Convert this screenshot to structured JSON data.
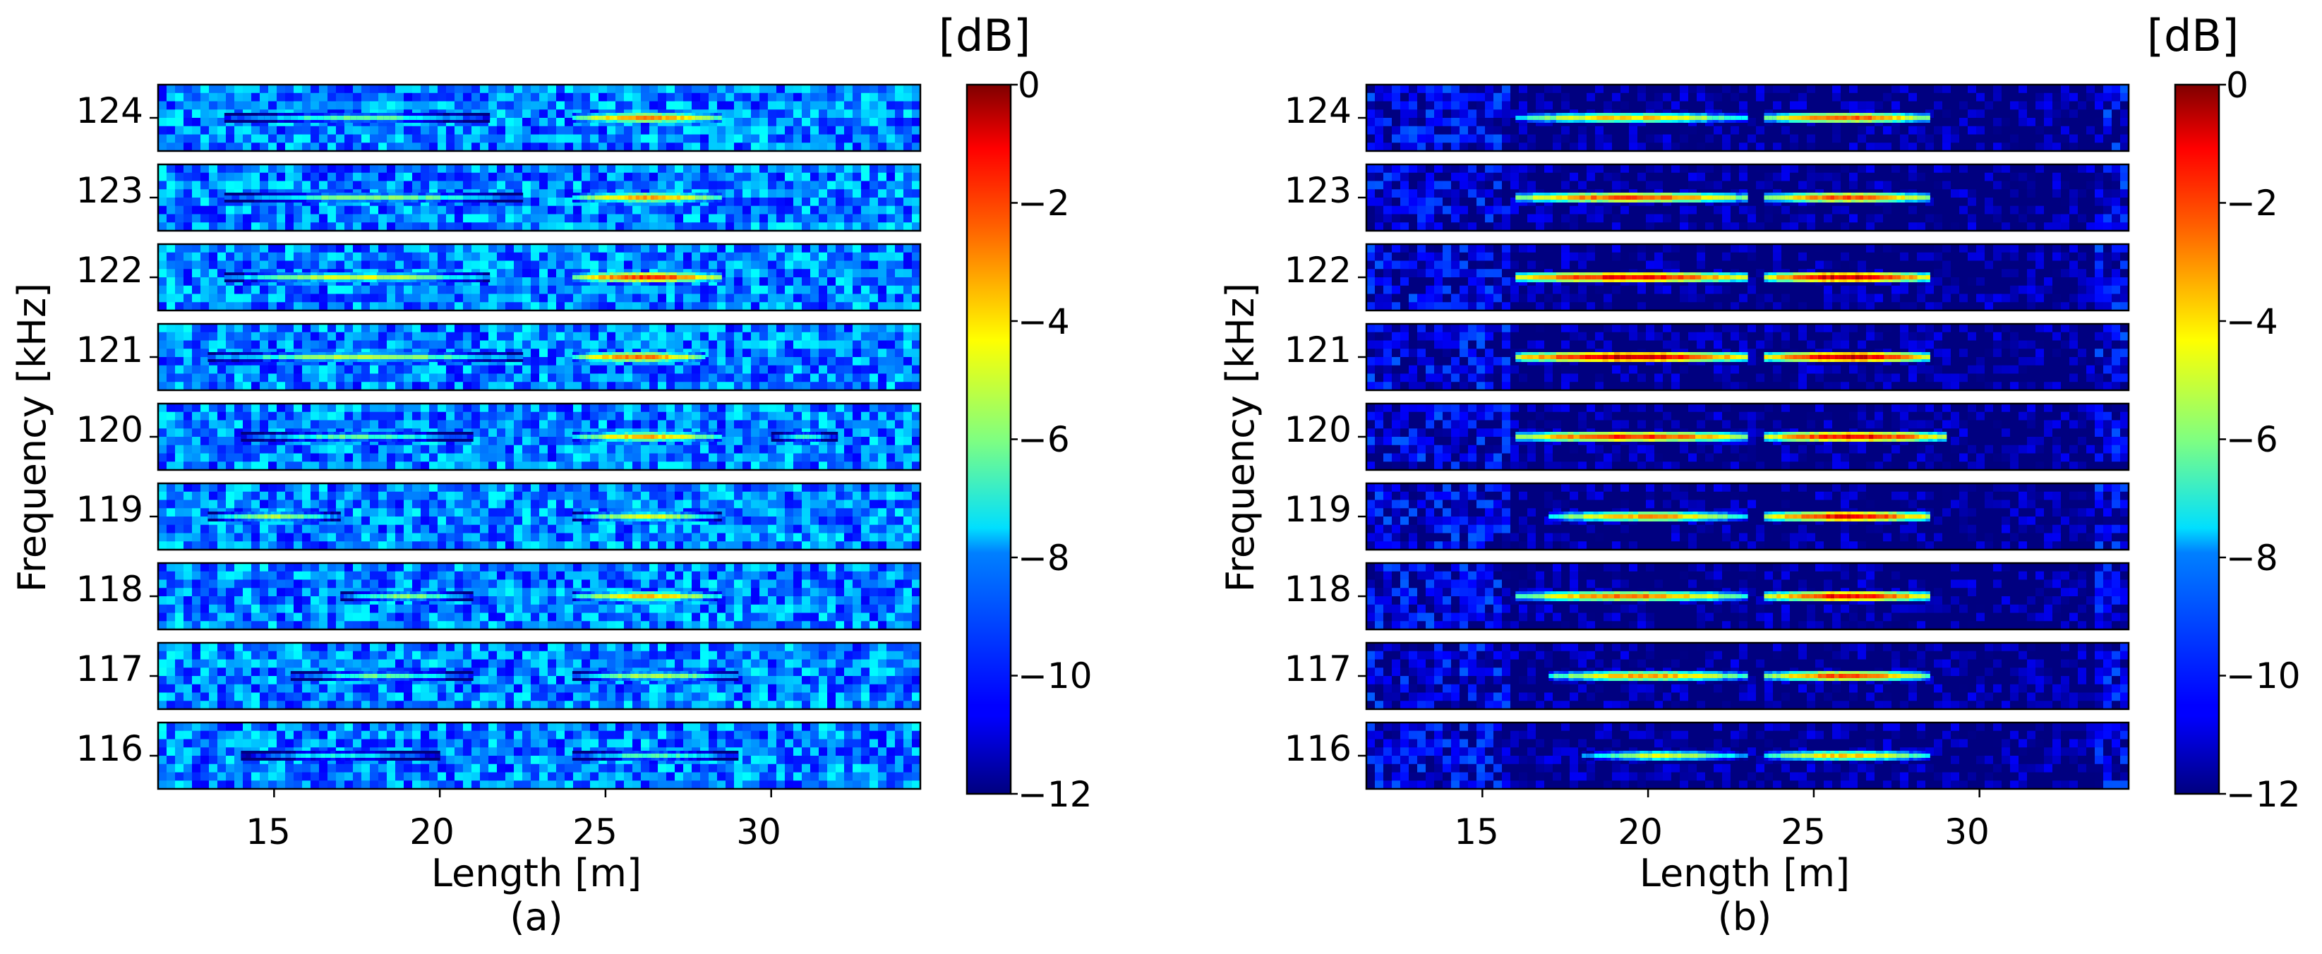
{
  "chart_data": [
    {
      "type": "heatmap",
      "caption": "(a)",
      "xlabel": "Length [m]",
      "ylabel": "Frequency [kHz]",
      "x_ticks": [
        15,
        20,
        25,
        30
      ],
      "xlim": [
        11.5,
        34.5
      ],
      "rows": [
        124,
        123,
        122,
        121,
        120,
        119,
        118,
        117,
        116
      ],
      "colorbar": {
        "title": "[dB]",
        "ticks": [
          0,
          -2,
          -4,
          -6,
          -8,
          -10,
          -12
        ],
        "range": [
          -12,
          0
        ],
        "colormap": "jet"
      },
      "background_level_db": -9,
      "row_ridges": {
        "124": [
          [
            13.5,
            21.5,
            -6.5
          ],
          [
            24.0,
            28.5,
            -3.2
          ]
        ],
        "123": [
          [
            13.5,
            22.5,
            -6.0
          ],
          [
            24.0,
            28.5,
            -3.5
          ]
        ],
        "122": [
          [
            13.5,
            21.5,
            -5.0
          ],
          [
            24.0,
            28.5,
            -2.2
          ]
        ],
        "121": [
          [
            13.0,
            22.5,
            -5.5
          ],
          [
            24.0,
            28.0,
            -3.0
          ]
        ],
        "120": [
          [
            14.0,
            21.0,
            -6.5
          ],
          [
            24.0,
            28.5,
            -3.8
          ],
          [
            30.0,
            32.0,
            -7.0
          ]
        ],
        "119": [
          [
            13.0,
            17.0,
            -5.5
          ],
          [
            24.0,
            28.5,
            -5.0
          ]
        ],
        "118": [
          [
            17.0,
            21.0,
            -6.0
          ],
          [
            24.0,
            28.5,
            -4.0
          ]
        ],
        "117": [
          [
            15.5,
            21.0,
            -6.5
          ],
          [
            24.0,
            29.0,
            -5.5
          ]
        ],
        "116": [
          [
            14.0,
            20.0,
            -7.5
          ],
          [
            24.0,
            29.0,
            -6.5
          ]
        ]
      }
    },
    {
      "type": "heatmap",
      "caption": "(b)",
      "xlabel": "Length [m]",
      "ylabel": "Frequency [kHz]",
      "x_ticks": [
        15,
        20,
        25,
        30
      ],
      "xlim": [
        11.5,
        34.5
      ],
      "rows": [
        124,
        123,
        122,
        121,
        120,
        119,
        118,
        117,
        116
      ],
      "colorbar": {
        "title": "[dB]",
        "ticks": [
          0,
          -2,
          -4,
          -6,
          -8,
          -10,
          -12
        ],
        "range": [
          -12,
          0
        ],
        "colormap": "jet"
      },
      "background_level_db": -11,
      "row_ridges": {
        "124": [
          [
            16.0,
            23.0,
            -4.0
          ],
          [
            23.5,
            28.5,
            -2.5
          ]
        ],
        "123": [
          [
            16.0,
            23.0,
            -2.5
          ],
          [
            23.5,
            28.5,
            -2.5
          ]
        ],
        "122": [
          [
            16.0,
            23.0,
            -1.5
          ],
          [
            23.5,
            28.5,
            -1.0
          ]
        ],
        "121": [
          [
            16.0,
            23.0,
            -1.0
          ],
          [
            23.5,
            28.5,
            -1.0
          ]
        ],
        "120": [
          [
            16.0,
            23.0,
            -2.0
          ],
          [
            23.5,
            29.0,
            -1.5
          ]
        ],
        "119": [
          [
            17.0,
            23.0,
            -3.5
          ],
          [
            23.5,
            28.5,
            -1.5
          ]
        ],
        "118": [
          [
            16.0,
            23.0,
            -3.0
          ],
          [
            23.5,
            28.5,
            -1.5
          ]
        ],
        "117": [
          [
            17.0,
            23.0,
            -3.5
          ],
          [
            23.5,
            28.5,
            -2.5
          ]
        ],
        "116": [
          [
            18.0,
            23.0,
            -5.0
          ],
          [
            23.5,
            28.5,
            -4.0
          ]
        ]
      }
    }
  ]
}
